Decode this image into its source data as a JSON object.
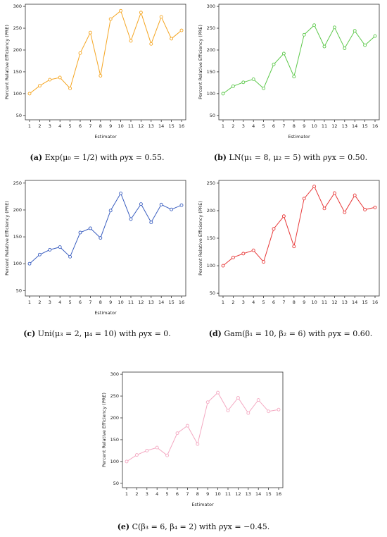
{
  "chart_data": [
    {
      "id": "a",
      "type": "line",
      "xlabel": "Estimator",
      "ylabel": "Percent Relative Efficiency (PRE)",
      "x": [
        1,
        2,
        3,
        4,
        5,
        6,
        7,
        8,
        9,
        10,
        11,
        12,
        13,
        14,
        15,
        16
      ],
      "values": [
        100,
        118,
        132,
        137,
        112,
        193,
        240,
        141,
        271,
        290,
        221,
        286,
        214,
        276,
        226,
        245
      ],
      "ylim": [
        40,
        305
      ],
      "yticks": [
        50,
        100,
        150,
        200,
        250,
        300
      ],
      "color": "#f5a623",
      "caption_label": "(a)",
      "caption_text": "Exp(μ₀ = 1/2) with ρyx = 0.55."
    },
    {
      "id": "b",
      "type": "line",
      "xlabel": "Estimator",
      "ylabel": "Percent Relative Efficiency (PRE)",
      "x": [
        1,
        2,
        3,
        4,
        5,
        6,
        7,
        8,
        9,
        10,
        11,
        12,
        13,
        14,
        15,
        16
      ],
      "values": [
        100,
        117,
        126,
        133,
        112,
        167,
        192,
        139,
        235,
        257,
        208,
        252,
        204,
        244,
        211,
        232
      ],
      "ylim": [
        40,
        305
      ],
      "yticks": [
        50,
        100,
        150,
        200,
        250,
        300
      ],
      "color": "#5cc84a",
      "caption_label": "(b)",
      "caption_text": "LN(μ₁ = 8, μ₂ = 5) with ρyx = 0.50."
    },
    {
      "id": "c",
      "type": "line",
      "xlabel": "Estimator",
      "ylabel": "Percent Relative Efficiency (PRE)",
      "x": [
        1,
        2,
        3,
        4,
        5,
        6,
        7,
        8,
        9,
        10,
        11,
        12,
        13,
        14,
        15,
        16
      ],
      "values": [
        100,
        117,
        126,
        131,
        113,
        158,
        166,
        148,
        199,
        231,
        183,
        211,
        177,
        210,
        201,
        209
      ],
      "ylim": [
        40,
        255
      ],
      "yticks": [
        50,
        100,
        150,
        200,
        250
      ],
      "color": "#3b5fc0",
      "caption_label": "(c)",
      "caption_text": "Uni(μ₃ = 2, μ₄ = 10) with ρyx = 0."
    },
    {
      "id": "d",
      "type": "line",
      "xlabel": "",
      "ylabel": "Percent Relative Efficiency (PRE)",
      "x": [
        1,
        2,
        3,
        4,
        5,
        6,
        7,
        8,
        9,
        10,
        11,
        12,
        13,
        14,
        15,
        16
      ],
      "values": [
        100,
        115,
        122,
        128,
        107,
        167,
        190,
        135,
        222,
        244,
        204,
        232,
        197,
        228,
        202,
        206
      ],
      "ylim": [
        45,
        255
      ],
      "yticks": [
        50,
        100,
        150,
        200,
        250
      ],
      "color": "#e83a3a",
      "caption_label": "(d)",
      "caption_text": "Gam(β₁ = 10, β₂ = 6) with ρyx = 0.60."
    },
    {
      "id": "e",
      "type": "line",
      "xlabel": "Estimator",
      "ylabel": "Percent Relative Efficiency (PRE)",
      "x": [
        1,
        2,
        3,
        4,
        5,
        6,
        7,
        8,
        9,
        10,
        11,
        12,
        13,
        14,
        15,
        16
      ],
      "values": [
        100,
        115,
        125,
        132,
        114,
        165,
        182,
        140,
        236,
        258,
        217,
        246,
        211,
        241,
        215,
        219
      ],
      "ylim": [
        40,
        305
      ],
      "yticks": [
        50,
        100,
        150,
        200,
        250,
        300
      ],
      "color": "#f4a9c2",
      "caption_label": "(e)",
      "caption_text": "C(β₃ = 6, β₄ = 2) with ρyx = −0.45."
    }
  ]
}
